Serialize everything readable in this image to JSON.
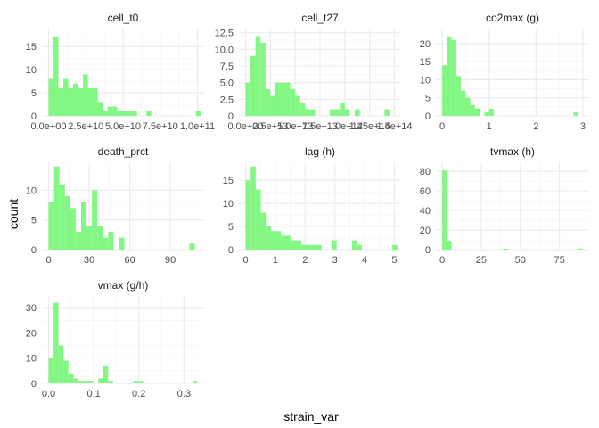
{
  "chart_data": {
    "type": "bar",
    "style": "faceted histogram",
    "xlabel": "strain_var",
    "ylabel": "count",
    "colors": {
      "bar": "#7CF77C",
      "bar_edge": "#5EEB5E",
      "panel_bg": "#ffffff",
      "grid": "#ebebeb",
      "text": "#4d4d4d"
    },
    "grid": true,
    "panels": [
      {
        "title": "cell_t0",
        "xlim": [
          0,
          100000000000
        ],
        "ylim": [
          0,
          18
        ],
        "xticks": [
          0,
          25000000000,
          50000000000,
          75000000000,
          100000000000
        ],
        "xtick_labels": [
          "0.0e+00",
          "2.5e+10",
          "5.0e+10",
          "7.5e+10",
          "1.0e+11"
        ],
        "yticks": [
          0,
          5,
          10,
          15
        ],
        "ytick_labels": [
          "0",
          "5",
          "10",
          "15"
        ],
        "bins": [
          {
            "x0": 0,
            "x1": 3300000000,
            "count": 8
          },
          {
            "x0": 3300000000,
            "x1": 6600000000,
            "count": 17
          },
          {
            "x0": 6600000000,
            "x1": 9900000000,
            "count": 6
          },
          {
            "x0": 9900000000,
            "x1": 13200000000,
            "count": 8
          },
          {
            "x0": 13200000000,
            "x1": 16500000000,
            "count": 6
          },
          {
            "x0": 16500000000,
            "x1": 19800000000,
            "count": 7
          },
          {
            "x0": 19800000000,
            "x1": 23100000000,
            "count": 6
          },
          {
            "x0": 23100000000,
            "x1": 26400000000,
            "count": 9
          },
          {
            "x0": 26400000000,
            "x1": 29700000000,
            "count": 6
          },
          {
            "x0": 29700000000,
            "x1": 33000000000,
            "count": 6
          },
          {
            "x0": 33000000000,
            "x1": 36300000000,
            "count": 3
          },
          {
            "x0": 36300000000,
            "x1": 39600000000,
            "count": 1
          },
          {
            "x0": 39600000000,
            "x1": 42900000000,
            "count": 2
          },
          {
            "x0": 42900000000,
            "x1": 46200000000,
            "count": 2
          },
          {
            "x0": 46200000000,
            "x1": 49500000000,
            "count": 1
          },
          {
            "x0": 49500000000,
            "x1": 52800000000,
            "count": 1
          },
          {
            "x0": 52800000000,
            "x1": 56100000000,
            "count": 1
          },
          {
            "x0": 56100000000,
            "x1": 59400000000,
            "count": 1
          },
          {
            "x0": 65700000000,
            "x1": 69000000000,
            "count": 1
          },
          {
            "x0": 99000000000,
            "x1": 102300000000,
            "count": 1
          }
        ]
      },
      {
        "title": "cell_t27",
        "xlim": [
          0,
          150000000000000
        ],
        "ylim": [
          0,
          12.5
        ],
        "xticks": [
          0,
          25000000000000,
          50000000000000,
          75000000000000,
          100000000000000,
          125000000000000,
          150000000000000
        ],
        "xtick_labels": [
          "0.0e+00",
          "2.5e+13",
          "5.0e+13",
          "7.5e+13",
          "1.0e+14",
          "1.25e+14",
          "1.5e+14"
        ],
        "yticks": [
          0,
          2.5,
          5,
          7.5,
          10,
          12.5
        ],
        "ytick_labels": [
          "0",
          "2.5",
          "5.0",
          "7.5",
          "10.0",
          "12.5"
        ],
        "bins": [
          {
            "x0": 0,
            "x1": 5000000000000,
            "count": 5
          },
          {
            "x0": 5000000000000,
            "x1": 10000000000000,
            "count": 9
          },
          {
            "x0": 10000000000000,
            "x1": 15000000000000,
            "count": 12
          },
          {
            "x0": 15000000000000,
            "x1": 20000000000000,
            "count": 11
          },
          {
            "x0": 20000000000000,
            "x1": 25000000000000,
            "count": 4
          },
          {
            "x0": 25000000000000,
            "x1": 30000000000000,
            "count": 3
          },
          {
            "x0": 30000000000000,
            "x1": 35000000000000,
            "count": 5
          },
          {
            "x0": 35000000000000,
            "x1": 40000000000000,
            "count": 5
          },
          {
            "x0": 40000000000000,
            "x1": 45000000000000,
            "count": 5
          },
          {
            "x0": 45000000000000,
            "x1": 50000000000000,
            "count": 4
          },
          {
            "x0": 50000000000000,
            "x1": 55000000000000,
            "count": 3
          },
          {
            "x0": 55000000000000,
            "x1": 60000000000000,
            "count": 2
          },
          {
            "x0": 60000000000000,
            "x1": 65000000000000,
            "count": 1
          },
          {
            "x0": 65000000000000,
            "x1": 70000000000000,
            "count": 1
          },
          {
            "x0": 85000000000000,
            "x1": 90000000000000,
            "count": 1
          },
          {
            "x0": 90000000000000,
            "x1": 95000000000000,
            "count": 1
          },
          {
            "x0": 95000000000000,
            "x1": 100000000000000,
            "count": 2
          },
          {
            "x0": 100000000000000,
            "x1": 105000000000000,
            "count": 1
          },
          {
            "x0": 110000000000000,
            "x1": 115000000000000,
            "count": 1
          },
          {
            "x0": 140000000000000,
            "x1": 145000000000000,
            "count": 1
          }
        ]
      },
      {
        "title": "co2max (g)",
        "xlim": [
          0,
          3
        ],
        "ylim": [
          0,
          23
        ],
        "xticks": [
          0,
          1,
          2,
          3
        ],
        "xtick_labels": [
          "0",
          "1",
          "2",
          "3"
        ],
        "yticks": [
          0,
          5,
          10,
          15,
          20
        ],
        "ytick_labels": [
          "0",
          "5",
          "10",
          "15",
          "20"
        ],
        "bins": [
          {
            "x0": 0,
            "x1": 0.1,
            "count": 14
          },
          {
            "x0": 0.1,
            "x1": 0.2,
            "count": 22
          },
          {
            "x0": 0.2,
            "x1": 0.3,
            "count": 21
          },
          {
            "x0": 0.3,
            "x1": 0.4,
            "count": 11
          },
          {
            "x0": 0.4,
            "x1": 0.5,
            "count": 7
          },
          {
            "x0": 0.5,
            "x1": 0.6,
            "count": 5
          },
          {
            "x0": 0.6,
            "x1": 0.7,
            "count": 3
          },
          {
            "x0": 0.7,
            "x1": 0.8,
            "count": 2
          },
          {
            "x0": 0.9,
            "x1": 1.0,
            "count": 1
          },
          {
            "x0": 1.0,
            "x1": 1.1,
            "count": 2
          },
          {
            "x0": 2.8,
            "x1": 2.9,
            "count": 1
          }
        ]
      },
      {
        "title": "death_prct",
        "xlim": [
          0,
          110
        ],
        "ylim": [
          0,
          14
        ],
        "xticks": [
          0,
          30,
          60,
          90
        ],
        "xtick_labels": [
          "0",
          "30",
          "60",
          "90"
        ],
        "yticks": [
          0,
          5,
          10
        ],
        "ytick_labels": [
          "0",
          "5",
          "10"
        ],
        "bins": [
          {
            "x0": 0,
            "x1": 4,
            "count": 8
          },
          {
            "x0": 4,
            "x1": 8,
            "count": 14
          },
          {
            "x0": 8,
            "x1": 12,
            "count": 11
          },
          {
            "x0": 12,
            "x1": 16,
            "count": 9
          },
          {
            "x0": 16,
            "x1": 20,
            "count": 7
          },
          {
            "x0": 20,
            "x1": 24,
            "count": 3
          },
          {
            "x0": 24,
            "x1": 28,
            "count": 8
          },
          {
            "x0": 28,
            "x1": 32,
            "count": 4
          },
          {
            "x0": 32,
            "x1": 36,
            "count": 10
          },
          {
            "x0": 36,
            "x1": 40,
            "count": 4
          },
          {
            "x0": 40,
            "x1": 44,
            "count": 2
          },
          {
            "x0": 44,
            "x1": 48,
            "count": 3
          },
          {
            "x0": 52,
            "x1": 56,
            "count": 2
          },
          {
            "x0": 104,
            "x1": 108,
            "count": 1
          }
        ]
      },
      {
        "title": "lag (h)",
        "xlim": [
          0,
          5
        ],
        "ylim": [
          0,
          18
        ],
        "xticks": [
          0,
          1,
          2,
          3,
          4,
          5
        ],
        "xtick_labels": [
          "0",
          "1",
          "2",
          "3",
          "4",
          "5"
        ],
        "yticks": [
          0,
          5,
          10,
          15
        ],
        "ytick_labels": [
          "0",
          "5",
          "10",
          "15"
        ],
        "bins": [
          {
            "x0": 0,
            "x1": 0.17,
            "count": 15
          },
          {
            "x0": 0.17,
            "x1": 0.34,
            "count": 18
          },
          {
            "x0": 0.34,
            "x1": 0.51,
            "count": 13
          },
          {
            "x0": 0.51,
            "x1": 0.68,
            "count": 8
          },
          {
            "x0": 0.68,
            "x1": 0.85,
            "count": 5
          },
          {
            "x0": 0.85,
            "x1": 1.02,
            "count": 4
          },
          {
            "x0": 1.02,
            "x1": 1.19,
            "count": 4
          },
          {
            "x0": 1.19,
            "x1": 1.36,
            "count": 3
          },
          {
            "x0": 1.36,
            "x1": 1.53,
            "count": 3
          },
          {
            "x0": 1.53,
            "x1": 1.7,
            "count": 2
          },
          {
            "x0": 1.7,
            "x1": 1.87,
            "count": 2
          },
          {
            "x0": 1.87,
            "x1": 2.04,
            "count": 1
          },
          {
            "x0": 2.04,
            "x1": 2.21,
            "count": 1
          },
          {
            "x0": 2.21,
            "x1": 2.38,
            "count": 1
          },
          {
            "x0": 2.38,
            "x1": 2.55,
            "count": 1
          },
          {
            "x0": 2.89,
            "x1": 3.06,
            "count": 2
          },
          {
            "x0": 3.57,
            "x1": 3.74,
            "count": 2
          },
          {
            "x0": 3.74,
            "x1": 3.91,
            "count": 1
          },
          {
            "x0": 4.93,
            "x1": 5.1,
            "count": 1
          }
        ]
      },
      {
        "title": "tvmax (h)",
        "xlim": [
          0,
          90
        ],
        "ylim": [
          0,
          85
        ],
        "xticks": [
          0,
          25,
          50,
          75
        ],
        "xtick_labels": [
          "0",
          "25",
          "50",
          "75"
        ],
        "yticks": [
          0,
          20,
          40,
          60,
          80
        ],
        "ytick_labels": [
          "0",
          "20",
          "40",
          "60",
          "80"
        ],
        "bins": [
          {
            "x0": 0,
            "x1": 3,
            "count": 81
          },
          {
            "x0": 3,
            "x1": 6,
            "count": 9
          },
          {
            "x0": 39,
            "x1": 42,
            "count": 1
          },
          {
            "x0": 87,
            "x1": 90,
            "count": 1
          }
        ]
      },
      {
        "title": "vmax (g/h)",
        "xlim": [
          0,
          0.33
        ],
        "ylim": [
          0,
          33
        ],
        "xticks": [
          0,
          0.1,
          0.2,
          0.3
        ],
        "xtick_labels": [
          "0.0",
          "0.1",
          "0.2",
          "0.3"
        ],
        "yticks": [
          0,
          10,
          20,
          30
        ],
        "ytick_labels": [
          "0",
          "10",
          "20",
          "30"
        ],
        "bins": [
          {
            "x0": 0,
            "x1": 0.011,
            "count": 10
          },
          {
            "x0": 0.011,
            "x1": 0.022,
            "count": 32
          },
          {
            "x0": 0.022,
            "x1": 0.033,
            "count": 15
          },
          {
            "x0": 0.033,
            "x1": 0.044,
            "count": 9
          },
          {
            "x0": 0.044,
            "x1": 0.055,
            "count": 4
          },
          {
            "x0": 0.055,
            "x1": 0.066,
            "count": 2
          },
          {
            "x0": 0.066,
            "x1": 0.077,
            "count": 1
          },
          {
            "x0": 0.077,
            "x1": 0.088,
            "count": 1
          },
          {
            "x0": 0.088,
            "x1": 0.099,
            "count": 1
          },
          {
            "x0": 0.11,
            "x1": 0.121,
            "count": 2
          },
          {
            "x0": 0.121,
            "x1": 0.132,
            "count": 7
          },
          {
            "x0": 0.132,
            "x1": 0.143,
            "count": 1
          },
          {
            "x0": 0.187,
            "x1": 0.198,
            "count": 1
          },
          {
            "x0": 0.198,
            "x1": 0.209,
            "count": 1
          },
          {
            "x0": 0.319,
            "x1": 0.33,
            "count": 1
          }
        ]
      }
    ]
  }
}
